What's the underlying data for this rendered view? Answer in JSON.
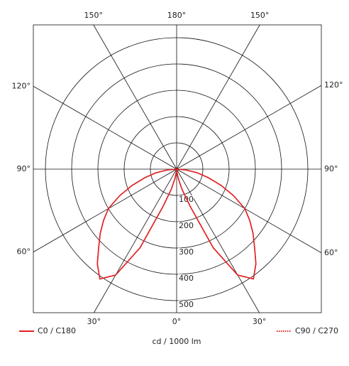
{
  "chart_data": {
    "type": "polar",
    "x_label": "cd / 1000 lm",
    "angles": [
      -90,
      -85,
      -80,
      -75,
      -70,
      -65,
      -60,
      -55,
      -50,
      -45,
      -40,
      -35,
      -30,
      -25,
      -20,
      -15,
      -10,
      -5,
      0,
      5,
      10,
      15,
      20,
      25,
      30,
      35,
      40,
      45,
      50,
      55,
      60,
      65,
      70,
      75,
      80,
      85,
      90
    ],
    "series": [
      {
        "name": "C0 / C180",
        "color": "#e02020",
        "style": "solid",
        "values": [
          0,
          35,
          80,
          125,
          180,
          240,
          300,
          340,
          380,
          420,
          470,
          510,
          465,
          330,
          150,
          80,
          35,
          10,
          0,
          10,
          35,
          80,
          150,
          330,
          465,
          510,
          470,
          420,
          380,
          340,
          300,
          240,
          180,
          125,
          80,
          35,
          0
        ]
      },
      {
        "name": "C90 / C270",
        "color": "#e02020",
        "style": "dotted",
        "values": [
          0,
          35,
          80,
          125,
          180,
          240,
          300,
          340,
          380,
          420,
          470,
          510,
          465,
          330,
          150,
          80,
          35,
          10,
          0,
          10,
          35,
          80,
          150,
          330,
          465,
          510,
          470,
          420,
          380,
          340,
          300,
          240,
          180,
          125,
          80,
          35,
          0
        ]
      }
    ],
    "rlim": [
      0,
      500
    ],
    "rticks": [
      100,
      200,
      300,
      400,
      500
    ],
    "angle_ticks": [
      {
        "value": 0,
        "label": "0°"
      },
      {
        "value": 30,
        "label": "30°"
      },
      {
        "value": 60,
        "label": "60°"
      },
      {
        "value": 90,
        "label": "90°"
      },
      {
        "value": 120,
        "label": "120°"
      },
      {
        "value": 150,
        "label": "150°"
      },
      {
        "value": 180,
        "label": "180°"
      },
      {
        "value": -150,
        "label": "150°"
      },
      {
        "value": -120,
        "label": "120°"
      },
      {
        "value": -90,
        "label": "90°"
      },
      {
        "value": -60,
        "label": "60°"
      },
      {
        "value": -30,
        "label": "30°"
      }
    ]
  }
}
